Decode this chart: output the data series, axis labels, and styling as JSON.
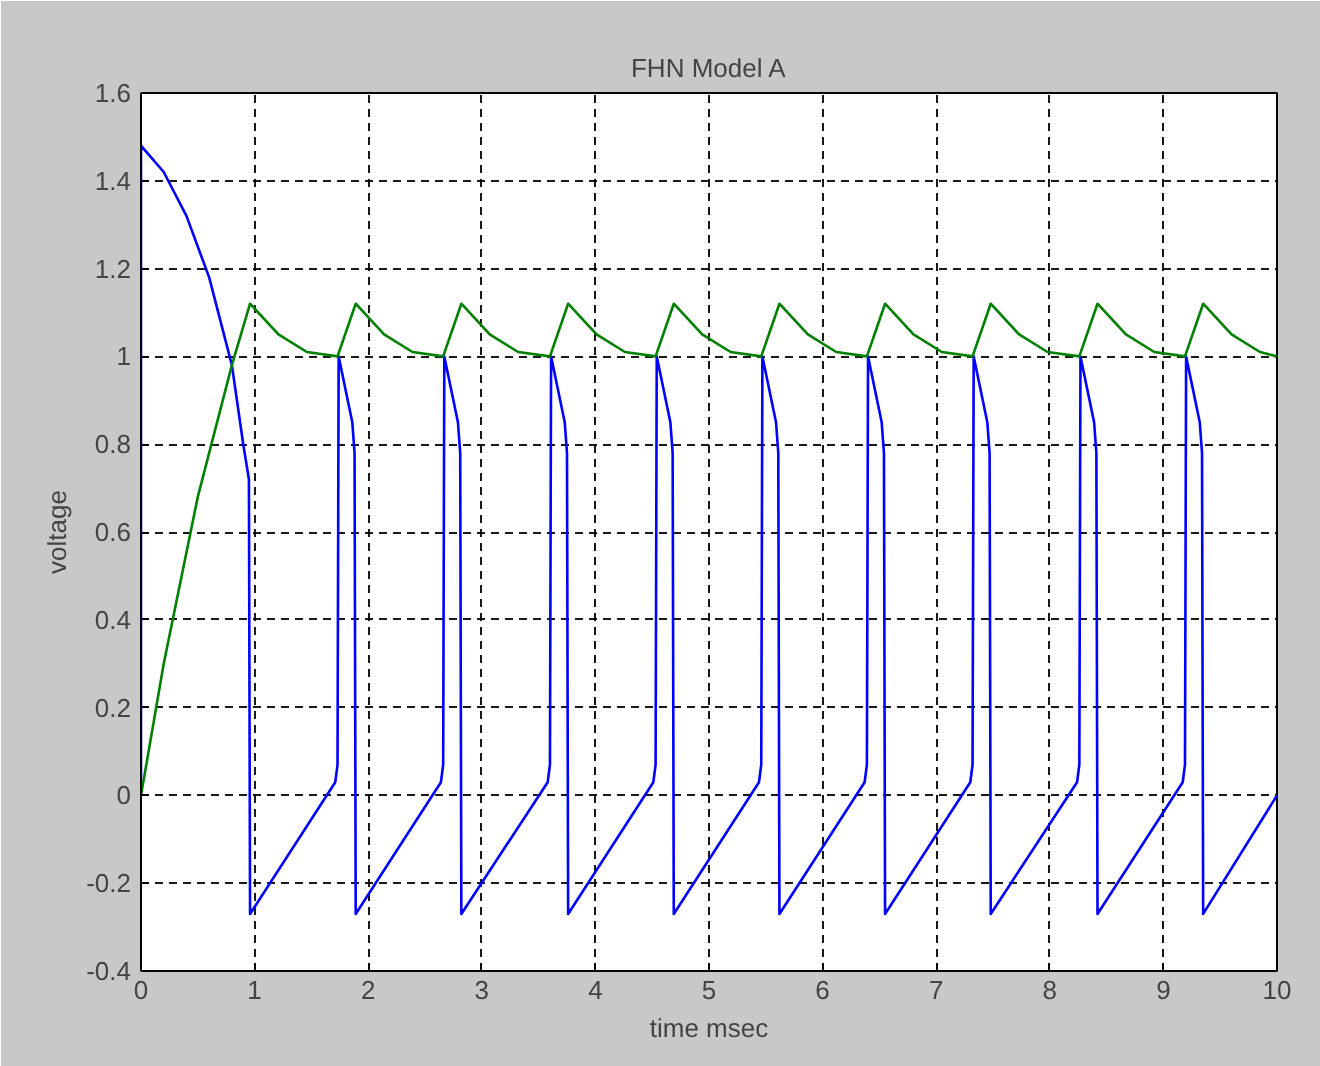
{
  "chart_data": {
    "type": "line",
    "title": "FHN Model A",
    "xlabel": "time msec",
    "ylabel": "voltage",
    "xlim": [
      0,
      10
    ],
    "xticks": [
      0,
      1,
      2,
      3,
      4,
      5,
      6,
      7,
      8,
      9,
      10
    ],
    "ylim": [
      -0.4,
      1.6
    ],
    "yticks": [
      {
        "value": -0.4,
        "label": "-0.4"
      },
      {
        "value": -0.2,
        "label": "-0.2"
      },
      0,
      {
        "value": 0.2,
        "label": "0.2"
      },
      {
        "value": 0.4,
        "label": "0.4"
      },
      {
        "value": 0.6,
        "label": "0.6"
      },
      {
        "value": 0.8,
        "label": "0.8"
      },
      1,
      {
        "value": 1.2,
        "label": "1.2"
      },
      {
        "value": 1.4,
        "label": "1.4"
      },
      {
        "value": 1.6,
        "label": "1.6"
      }
    ],
    "grid": true,
    "line_style": "solid",
    "series": [
      {
        "color": "#0000ff",
        "x": [
          0,
          0,
          0.2,
          0.4,
          0.6,
          0.8,
          0.9,
          0.95,
          0.96,
          1.71,
          1.73,
          1.74,
          1.86,
          1.88,
          1.89,
          2.64,
          2.66,
          2.67,
          2.79,
          2.81,
          2.82,
          3.58,
          3.6,
          3.61,
          3.73,
          3.75,
          3.76,
          4.51,
          4.53,
          4.54,
          4.66,
          4.68,
          4.69,
          5.44,
          5.46,
          5.47,
          5.59,
          5.61,
          5.62,
          6.37,
          6.39,
          6.4,
          6.52,
          6.54,
          6.55,
          7.3,
          7.32,
          7.33,
          7.45,
          7.47,
          7.48,
          8.24,
          8.26,
          8.27,
          8.39,
          8.41,
          8.42,
          9.17,
          9.19,
          9.2,
          9.32,
          9.34,
          9.35,
          10
        ],
        "values": [
          0,
          1.48,
          1.42,
          1.32,
          1.18,
          0.98,
          0.8,
          0.72,
          -0.27,
          0.03,
          0.07,
          1.0,
          0.85,
          0.78,
          -0.27,
          0.03,
          0.07,
          1.0,
          0.85,
          0.78,
          -0.27,
          0.03,
          0.07,
          1.0,
          0.85,
          0.78,
          -0.27,
          0.03,
          0.07,
          1.0,
          0.85,
          0.78,
          -0.27,
          0.03,
          0.07,
          1.0,
          0.85,
          0.78,
          -0.27,
          0.03,
          0.07,
          1.0,
          0.85,
          0.78,
          -0.27,
          0.03,
          0.07,
          1.0,
          0.85,
          0.78,
          -0.27,
          0.03,
          0.07,
          1.0,
          0.85,
          0.78,
          -0.27,
          0.03,
          0.07,
          1.0,
          0.85,
          0.78,
          -0.27,
          0.0
        ]
      },
      {
        "color": "#008000",
        "x": [
          0,
          0.2,
          0.5,
          0.8,
          0.96,
          1.21,
          1.46,
          1.73,
          1.89,
          2.14,
          2.39,
          2.66,
          2.82,
          3.07,
          3.32,
          3.6,
          3.76,
          4.01,
          4.26,
          4.53,
          4.69,
          4.94,
          5.19,
          5.46,
          5.62,
          5.87,
          6.12,
          6.39,
          6.55,
          6.8,
          7.05,
          7.32,
          7.48,
          7.73,
          7.98,
          8.26,
          8.42,
          8.67,
          8.92,
          9.19,
          9.35,
          9.6,
          9.85,
          10
        ],
        "values": [
          0,
          0.3,
          0.68,
          0.98,
          1.12,
          1.05,
          1.01,
          1.0,
          1.12,
          1.05,
          1.01,
          1.0,
          1.12,
          1.05,
          1.01,
          1.0,
          1.12,
          1.05,
          1.01,
          1.0,
          1.12,
          1.05,
          1.01,
          1.0,
          1.12,
          1.05,
          1.01,
          1.0,
          1.12,
          1.05,
          1.01,
          1.0,
          1.12,
          1.05,
          1.01,
          1.0,
          1.12,
          1.05,
          1.01,
          1.0,
          1.12,
          1.05,
          1.01,
          1.0
        ]
      }
    ]
  }
}
